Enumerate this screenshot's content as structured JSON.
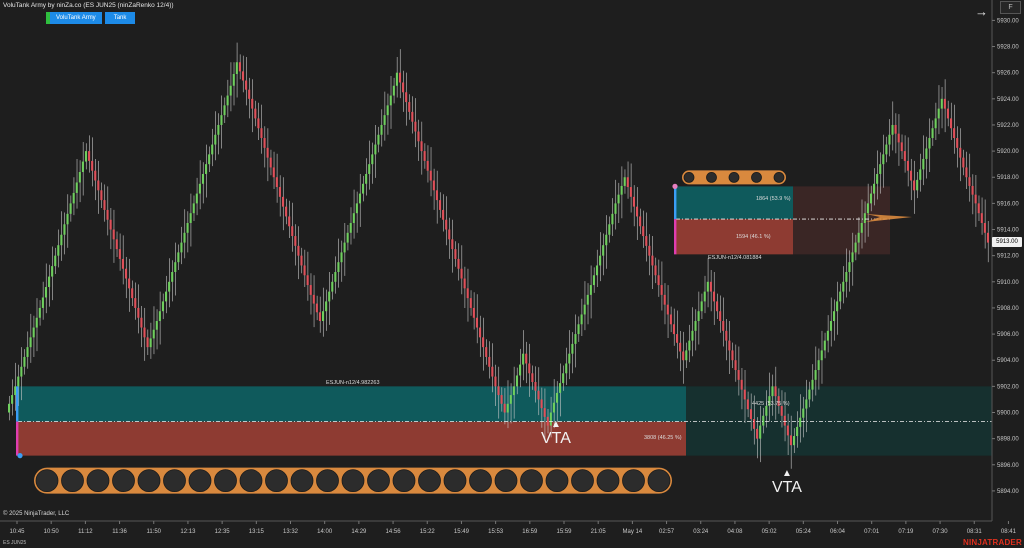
{
  "header": {
    "title": "VoluTank Army by ninZa.co (ES JUN25 (ninZaRenko 12/4))",
    "buttons": [
      "VoluTank Army",
      "Tank"
    ],
    "copyright": "© 2025 NinjaTrader, LLC",
    "symbol": "ES JUN25",
    "brand": "NINJATRADER",
    "maximize_label": "F"
  },
  "chart_data": {
    "type": "candlestick",
    "instrument": "ES JUN25",
    "bar_type": "ninZaRenko 12/4",
    "y_ticks": [
      5894,
      5896,
      5898,
      5900,
      5902,
      5904,
      5906,
      5908,
      5910,
      5912,
      5914,
      5916,
      5918,
      5920,
      5922,
      5924,
      5926,
      5928,
      5930
    ],
    "x_ticks": [
      "10:45",
      "10:50",
      "11:12",
      "11:36",
      "11:50",
      "12:13",
      "12:35",
      "13:15",
      "13:32",
      "14:00",
      "14:29",
      "14:56",
      "15:22",
      "15:49",
      "15:53",
      "16:59",
      "15:59",
      "21:05",
      "May 14",
      "02:57",
      "03:24",
      "04:08",
      "05:02",
      "05:24",
      "06:04",
      "07:01",
      "07:19",
      "07:30",
      "08:31",
      "08:41"
    ],
    "ylim": [
      5892.7,
      5931.5
    ],
    "last_price": "5913.00",
    "brick_path": [
      5900,
      5902,
      5905,
      5908,
      5912,
      5916,
      5920,
      5917,
      5914,
      5911,
      5908,
      5905,
      5907,
      5910,
      5913,
      5916,
      5919,
      5922,
      5925,
      5926.8,
      5924,
      5921,
      5918,
      5915,
      5912,
      5909,
      5907,
      5910,
      5913,
      5916,
      5919,
      5922,
      5925,
      5926,
      5923,
      5920,
      5917,
      5914,
      5911,
      5908,
      5905,
      5902,
      5900,
      5902,
      5904.5,
      5903,
      5901,
      5899,
      5900,
      5903,
      5906,
      5909,
      5912,
      5916,
      5918,
      5915,
      5912,
      5909,
      5906,
      5904,
      5907,
      5910,
      5907,
      5904,
      5901,
      5898,
      5899,
      5902,
      5899,
      5897.5,
      5901,
      5904,
      5907,
      5910,
      5913,
      5916,
      5919,
      5922,
      5920,
      5917,
      5921,
      5924,
      5921,
      5918,
      5916,
      5913
    ],
    "volume_tanks": [
      {
        "label": "ESJUN-n12/4.982263",
        "buy_text": "4425 (53.75 %)",
        "sell_text": "3808 (46.25 %)",
        "top": 5902,
        "mid": 5899.3,
        "bottom": 5896.7,
        "balls": 25
      },
      {
        "label": "ESJUN-n12/4.081884",
        "buy_text": "1864 (53.9 %)",
        "sell_text": "1594 (46.1 %)",
        "top": 5917.3,
        "mid": 5914.8,
        "bottom": 5912.1,
        "balls": 5
      }
    ],
    "vta_labels": [
      "VTA",
      "VTA"
    ]
  }
}
